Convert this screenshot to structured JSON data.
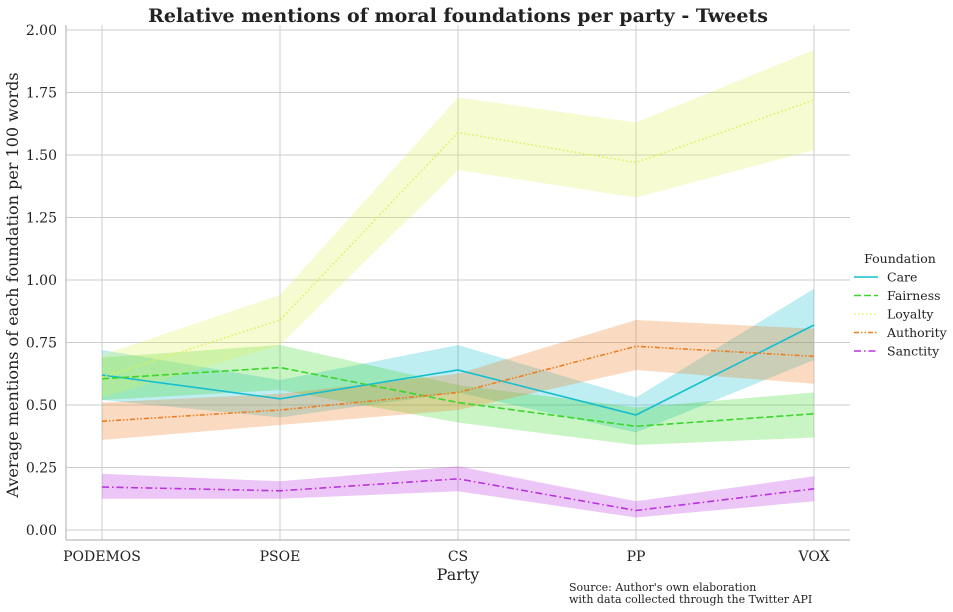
{
  "chart_data": {
    "type": "line",
    "title": "Relative mentions of moral foundations per party - Tweets",
    "xlabel": "Party",
    "ylabel": "Average mentions of each foundation per 100 words",
    "categories": [
      "PODEMOS",
      "PSOE",
      "CS",
      "PP",
      "VOX"
    ],
    "ylim": [
      -0.04,
      2.02
    ],
    "yticks": [
      "0.00",
      "0.25",
      "0.50",
      "0.75",
      "1.00",
      "1.25",
      "1.50",
      "1.75",
      "2.00"
    ],
    "grid": true,
    "legend": {
      "title": "Foundation",
      "placement": "right"
    },
    "series": [
      {
        "name": "Care",
        "color": "#17becf",
        "dash": "solid",
        "values": [
          0.62,
          0.525,
          0.64,
          0.46,
          0.82
        ],
        "lower": [
          0.52,
          0.45,
          0.55,
          0.39,
          0.68
        ],
        "upper": [
          0.72,
          0.6,
          0.74,
          0.53,
          0.965
        ]
      },
      {
        "name": "Fairness",
        "color": "#3cd62c",
        "dash": "dashed",
        "values": [
          0.605,
          0.65,
          0.51,
          0.415,
          0.465
        ],
        "lower": [
          0.52,
          0.56,
          0.43,
          0.34,
          0.37
        ],
        "upper": [
          0.69,
          0.74,
          0.58,
          0.49,
          0.55
        ]
      },
      {
        "name": "Loyalty",
        "color": "#dff05a",
        "dash": "dotted",
        "values": [
          0.61,
          0.84,
          1.59,
          1.47,
          1.72
        ],
        "lower": [
          0.53,
          0.74,
          1.44,
          1.33,
          1.52
        ],
        "upper": [
          0.7,
          0.94,
          1.73,
          1.63,
          1.92
        ]
      },
      {
        "name": "Authority",
        "color": "#ee7d1f",
        "dash": "dashdotdot",
        "values": [
          0.435,
          0.48,
          0.55,
          0.735,
          0.695
        ],
        "lower": [
          0.36,
          0.42,
          0.48,
          0.64,
          0.585
        ],
        "upper": [
          0.51,
          0.545,
          0.625,
          0.84,
          0.805
        ]
      },
      {
        "name": "Sanctity",
        "color": "#b934df",
        "dash": "dashdot",
        "values": [
          0.172,
          0.157,
          0.205,
          0.078,
          0.165
        ],
        "lower": [
          0.125,
          0.125,
          0.155,
          0.05,
          0.115
        ],
        "upper": [
          0.225,
          0.195,
          0.255,
          0.115,
          0.215
        ]
      }
    ]
  },
  "source": {
    "line1": "Source: Author's own elaboration",
    "line2": "with data collected through the Twitter API"
  }
}
